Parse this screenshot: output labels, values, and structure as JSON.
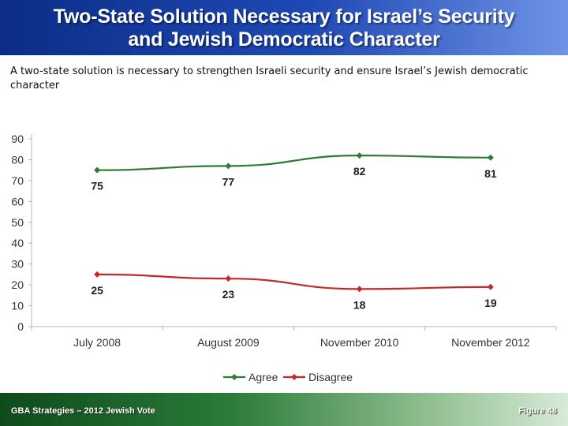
{
  "header": {
    "title_line1": "Two-State Solution Necessary for Israel’s Security",
    "title_line2": "and Jewish Democratic Character"
  },
  "subtitle": "A two-state solution is necessary to strengthen Israeli security and ensure Israel’s Jewish democratic character",
  "footer": {
    "source": "GBA Strategies – 2012 Jewish Vote",
    "figure": "Figure 48"
  },
  "colors": {
    "agree": "#2e7d32",
    "disagree": "#c62828"
  },
  "chart_data": {
    "type": "line",
    "title": "",
    "xlabel": "",
    "ylabel": "",
    "categories": [
      "July 2008",
      "August 2009",
      "November 2010",
      "November 2012"
    ],
    "x_fractions": [
      0.125,
      0.375,
      0.625,
      0.875
    ],
    "ylim": [
      0,
      90
    ],
    "yticks": [
      0,
      10,
      20,
      30,
      40,
      50,
      60,
      70,
      80,
      90
    ],
    "grid": false,
    "legend_position": "bottom",
    "series": [
      {
        "name": "Agree",
        "values": [
          75,
          77,
          82,
          81
        ],
        "labels": [
          "75",
          "77",
          "82",
          "81"
        ],
        "color": "#2e7d32",
        "label_position": "below"
      },
      {
        "name": "Disagree",
        "values": [
          25,
          23,
          18,
          19
        ],
        "labels": [
          "25",
          "23",
          "18",
          "19"
        ],
        "color": "#c62828",
        "label_position": "below"
      }
    ]
  }
}
